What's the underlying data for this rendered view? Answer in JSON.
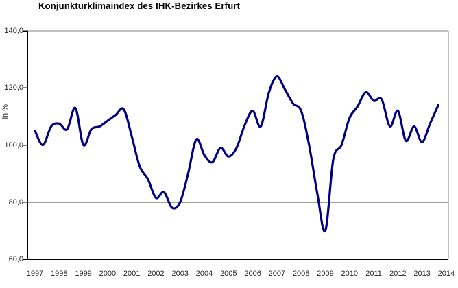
{
  "title": "Konjunkturklimaindex des IHK-Bezirkes Erfurt",
  "chart_data": {
    "type": "line",
    "title": "Konjunkturklimaindex des IHK-Bezirkes Erfurt",
    "ylabel": "in %",
    "xlabel": "",
    "ylim": [
      60,
      140
    ],
    "yticks": [
      140,
      120,
      100,
      80,
      60
    ],
    "ytick_labels": [
      "140,0",
      "120,0",
      "100,0",
      "80,0",
      "60,0"
    ],
    "categories": [
      "1997",
      "1998",
      "1999",
      "2000",
      "2001",
      "2002",
      "2003",
      "2004",
      "2005",
      "2006",
      "2007",
      "2008",
      "2009",
      "2010",
      "2011",
      "2012",
      "2013",
      "2014"
    ],
    "grid": "horizontal",
    "gridline_values": [
      120,
      100,
      80
    ],
    "legend_position": "none",
    "line_color": "#000080",
    "axis_color": "#000000",
    "gridline_color": "#404040",
    "border_color": "#808080",
    "series": [
      {
        "name": "Konjunkturklimaindex",
        "x": [
          1997,
          1997.33,
          1997.67,
          1998,
          1998.33,
          1998.67,
          1999,
          1999.33,
          1999.67,
          2000,
          2000.33,
          2000.67,
          2001,
          2001.33,
          2001.67,
          2002,
          2002.33,
          2002.67,
          2003,
          2003.33,
          2003.67,
          2004,
          2004.33,
          2004.67,
          2005,
          2005.33,
          2005.67,
          2006,
          2006.33,
          2006.67,
          2007,
          2007.33,
          2007.67,
          2008,
          2008.33,
          2008.67,
          2009,
          2009.33,
          2009.67,
          2010,
          2010.33,
          2010.67,
          2011,
          2011.33,
          2011.67,
          2012,
          2012.33,
          2012.67,
          2013,
          2013.33,
          2013.67
        ],
        "values": [
          105,
          100,
          106.5,
          107.5,
          105.5,
          113,
          100,
          105.5,
          106.5,
          108.5,
          110.5,
          112.5,
          103,
          92.5,
          88,
          81.5,
          83.5,
          78,
          80,
          90,
          102,
          96.5,
          94,
          99,
          96,
          99,
          107,
          112,
          106.5,
          118.5,
          124,
          119.5,
          114.5,
          112,
          100,
          83,
          70,
          95,
          100,
          109.5,
          113.5,
          118.5,
          115.5,
          116,
          106.5,
          112,
          101.5,
          106.5,
          101,
          107.5,
          114
        ]
      }
    ]
  }
}
